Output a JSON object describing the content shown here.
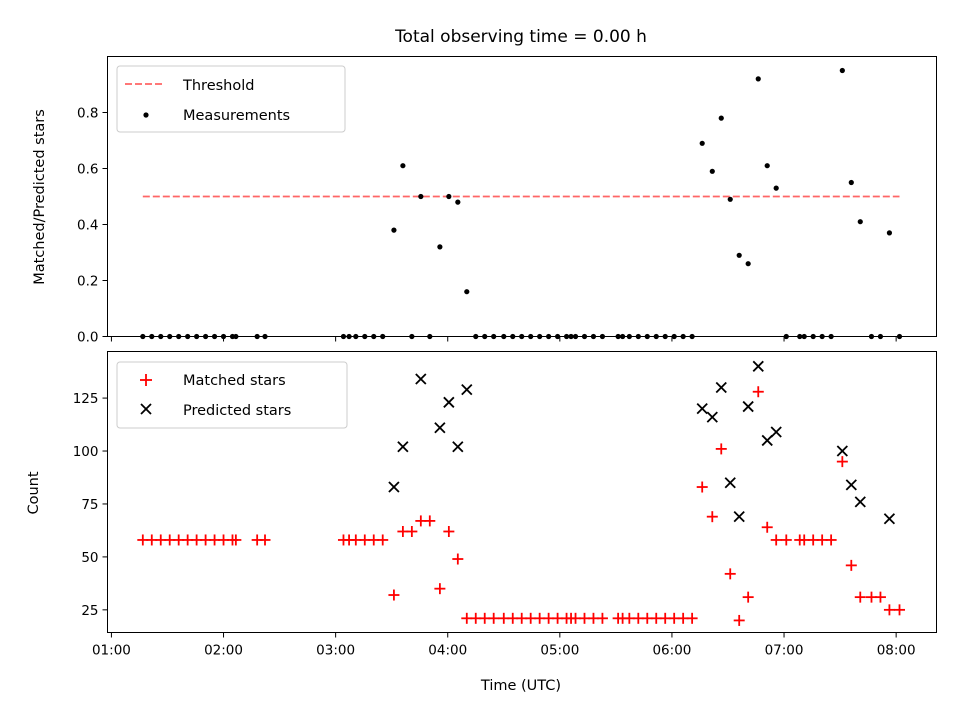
{
  "chart_data": [
    {
      "type": "scatter",
      "title": "Total observing time = 0.00 h",
      "xlabel": "",
      "ylabel": "Matched/Predicted stars",
      "x_unit": "UTC hours",
      "xlim": [
        0.965,
        8.36
      ],
      "ylim": [
        0,
        1.0
      ],
      "yticks": [
        0.0,
        0.2,
        0.4,
        0.6,
        0.8
      ],
      "ytick_labels": [
        "0.0",
        "0.2",
        "0.4",
        "0.6",
        "0.8"
      ],
      "legend_position": "upper left",
      "threshold": {
        "name": "Threshold",
        "value": 0.5,
        "x_range": [
          1.28,
          8.03
        ],
        "color": "#ff6666",
        "style": "dashed"
      },
      "series": [
        {
          "name": "Measurements",
          "color": "#000000",
          "marker": "dot",
          "points": [
            [
              1.28,
              0
            ],
            [
              1.36,
              0
            ],
            [
              1.44,
              0
            ],
            [
              1.52,
              0
            ],
            [
              1.6,
              0
            ],
            [
              1.68,
              0
            ],
            [
              1.76,
              0
            ],
            [
              1.84,
              0
            ],
            [
              1.92,
              0
            ],
            [
              2.0,
              0
            ],
            [
              2.08,
              0
            ],
            [
              2.11,
              0
            ],
            [
              2.3,
              0
            ],
            [
              2.37,
              0
            ],
            [
              3.07,
              0
            ],
            [
              3.12,
              0
            ],
            [
              3.18,
              0
            ],
            [
              3.26,
              0
            ],
            [
              3.34,
              0
            ],
            [
              3.42,
              0
            ],
            [
              3.52,
              0.38
            ],
            [
              3.6,
              0.61
            ],
            [
              3.68,
              0
            ],
            [
              3.76,
              0.5
            ],
            [
              3.84,
              0
            ],
            [
              3.93,
              0.32
            ],
            [
              4.01,
              0.5
            ],
            [
              4.09,
              0.48
            ],
            [
              4.17,
              0.16
            ],
            [
              4.25,
              0
            ],
            [
              4.33,
              0
            ],
            [
              4.41,
              0
            ],
            [
              4.5,
              0
            ],
            [
              4.58,
              0
            ],
            [
              4.66,
              0
            ],
            [
              4.74,
              0
            ],
            [
              4.82,
              0
            ],
            [
              4.9,
              0
            ],
            [
              4.98,
              0
            ],
            [
              5.06,
              0
            ],
            [
              5.1,
              0
            ],
            [
              5.14,
              0
            ],
            [
              5.22,
              0
            ],
            [
              5.3,
              0
            ],
            [
              5.38,
              0
            ],
            [
              5.52,
              0
            ],
            [
              5.56,
              0
            ],
            [
              5.62,
              0
            ],
            [
              5.7,
              0
            ],
            [
              5.78,
              0
            ],
            [
              5.86,
              0
            ],
            [
              5.94,
              0
            ],
            [
              6.02,
              0
            ],
            [
              6.1,
              0
            ],
            [
              6.18,
              0
            ],
            [
              6.27,
              0.69
            ],
            [
              6.36,
              0.59
            ],
            [
              6.44,
              0.78
            ],
            [
              6.52,
              0.49
            ],
            [
              6.6,
              0.29
            ],
            [
              6.68,
              0.26
            ],
            [
              6.77,
              0.92
            ],
            [
              6.85,
              0.61
            ],
            [
              6.93,
              0.53
            ],
            [
              7.02,
              0
            ],
            [
              7.14,
              0
            ],
            [
              7.18,
              0
            ],
            [
              7.26,
              0
            ],
            [
              7.34,
              0
            ],
            [
              7.42,
              0
            ],
            [
              7.52,
              0.95
            ],
            [
              7.6,
              0.55
            ],
            [
              7.68,
              0.41
            ],
            [
              7.78,
              0
            ],
            [
              7.86,
              0
            ],
            [
              7.94,
              0.37
            ],
            [
              8.03,
              0
            ]
          ]
        }
      ]
    },
    {
      "type": "scatter",
      "title": "",
      "xlabel": "Time (UTC)",
      "ylabel": "Count",
      "x_unit": "UTC hours",
      "xlim": [
        0.965,
        8.36
      ],
      "ylim": [
        14.3,
        147
      ],
      "yticks": [
        25,
        50,
        75,
        100,
        125
      ],
      "ytick_labels": [
        "25",
        "50",
        "75",
        "100",
        "125"
      ],
      "xticks": [
        1,
        2,
        3,
        4,
        5,
        6,
        7,
        8
      ],
      "xtick_labels": [
        "01:00",
        "02:00",
        "03:00",
        "04:00",
        "05:00",
        "06:00",
        "07:00",
        "08:00"
      ],
      "legend_position": "upper left",
      "series": [
        {
          "name": "Matched stars",
          "color": "#ff0000",
          "marker": "plus",
          "points": [
            [
              1.28,
              58
            ],
            [
              1.36,
              58
            ],
            [
              1.44,
              58
            ],
            [
              1.52,
              58
            ],
            [
              1.6,
              58
            ],
            [
              1.68,
              58
            ],
            [
              1.76,
              58
            ],
            [
              1.84,
              58
            ],
            [
              1.92,
              58
            ],
            [
              2.0,
              58
            ],
            [
              2.08,
              58
            ],
            [
              2.11,
              58
            ],
            [
              2.3,
              58
            ],
            [
              2.37,
              58
            ],
            [
              3.07,
              58
            ],
            [
              3.12,
              58
            ],
            [
              3.18,
              58
            ],
            [
              3.26,
              58
            ],
            [
              3.34,
              58
            ],
            [
              3.42,
              58
            ],
            [
              3.52,
              32
            ],
            [
              3.6,
              62
            ],
            [
              3.68,
              62
            ],
            [
              3.76,
              67
            ],
            [
              3.84,
              67
            ],
            [
              3.93,
              35
            ],
            [
              4.01,
              62
            ],
            [
              4.09,
              49
            ],
            [
              4.17,
              21
            ],
            [
              4.25,
              21
            ],
            [
              4.33,
              21
            ],
            [
              4.41,
              21
            ],
            [
              4.5,
              21
            ],
            [
              4.58,
              21
            ],
            [
              4.66,
              21
            ],
            [
              4.74,
              21
            ],
            [
              4.82,
              21
            ],
            [
              4.9,
              21
            ],
            [
              4.98,
              21
            ],
            [
              5.06,
              21
            ],
            [
              5.1,
              21
            ],
            [
              5.14,
              21
            ],
            [
              5.22,
              21
            ],
            [
              5.3,
              21
            ],
            [
              5.38,
              21
            ],
            [
              5.52,
              21
            ],
            [
              5.56,
              21
            ],
            [
              5.62,
              21
            ],
            [
              5.7,
              21
            ],
            [
              5.78,
              21
            ],
            [
              5.86,
              21
            ],
            [
              5.94,
              21
            ],
            [
              6.02,
              21
            ],
            [
              6.1,
              21
            ],
            [
              6.18,
              21
            ],
            [
              6.27,
              83
            ],
            [
              6.36,
              69
            ],
            [
              6.44,
              101
            ],
            [
              6.52,
              42
            ],
            [
              6.6,
              20
            ],
            [
              6.68,
              31
            ],
            [
              6.77,
              128
            ],
            [
              6.85,
              64
            ],
            [
              6.93,
              58
            ],
            [
              7.02,
              58
            ],
            [
              7.14,
              58
            ],
            [
              7.18,
              58
            ],
            [
              7.26,
              58
            ],
            [
              7.34,
              58
            ],
            [
              7.42,
              58
            ],
            [
              7.52,
              95
            ],
            [
              7.6,
              46
            ],
            [
              7.68,
              31
            ],
            [
              7.78,
              31
            ],
            [
              7.86,
              31
            ],
            [
              7.94,
              25
            ],
            [
              8.03,
              25
            ]
          ]
        },
        {
          "name": "Predicted stars",
          "color": "#000000",
          "marker": "x",
          "points": [
            [
              3.52,
              83
            ],
            [
              3.6,
              102
            ],
            [
              3.76,
              134
            ],
            [
              3.93,
              111
            ],
            [
              4.01,
              123
            ],
            [
              4.09,
              102
            ],
            [
              4.17,
              129
            ],
            [
              6.27,
              120
            ],
            [
              6.36,
              116
            ],
            [
              6.44,
              130
            ],
            [
              6.52,
              85
            ],
            [
              6.6,
              69
            ],
            [
              6.68,
              121
            ],
            [
              6.77,
              140
            ],
            [
              6.85,
              105
            ],
            [
              6.93,
              109
            ],
            [
              7.52,
              100
            ],
            [
              7.6,
              84
            ],
            [
              7.68,
              76
            ],
            [
              7.94,
              68
            ]
          ]
        }
      ]
    }
  ]
}
